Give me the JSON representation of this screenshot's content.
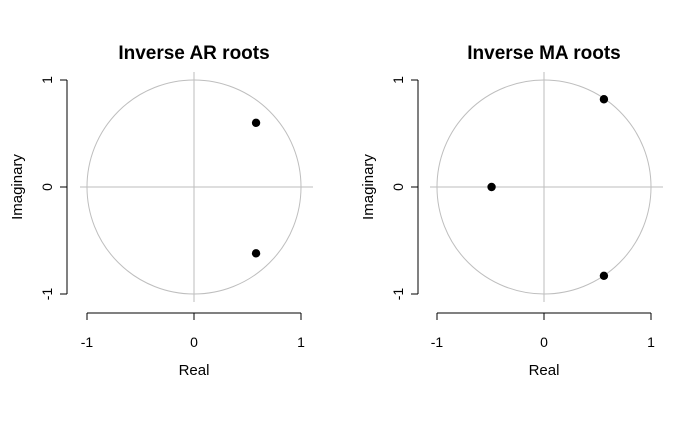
{
  "chart_data": [
    {
      "type": "scatter",
      "title": "Inverse AR roots",
      "xlabel": "Real",
      "ylabel": "Imaginary",
      "xlim": [
        -1,
        1
      ],
      "ylim": [
        -1,
        1
      ],
      "x_ticks": [
        "-1",
        "0",
        "1"
      ],
      "y_ticks": [
        "-1",
        "0",
        "1"
      ],
      "unit_circle": true,
      "grid": false,
      "points": [
        {
          "x": 0.58,
          "y": 0.6
        },
        {
          "x": 0.58,
          "y": -0.62
        }
      ]
    },
    {
      "type": "scatter",
      "title": "Inverse MA roots",
      "xlabel": "Real",
      "ylabel": "Imaginary",
      "xlim": [
        -1,
        1
      ],
      "ylim": [
        -1,
        1
      ],
      "x_ticks": [
        "-1",
        "0",
        "1"
      ],
      "y_ticks": [
        "-1",
        "0",
        "1"
      ],
      "unit_circle": true,
      "grid": false,
      "points": [
        {
          "x": 0.56,
          "y": 0.82
        },
        {
          "x": -0.49,
          "y": 0.0
        },
        {
          "x": 0.56,
          "y": -0.83
        }
      ]
    }
  ],
  "colors": {
    "points": "#000000",
    "reference_lines": "#bebebe",
    "axes": "#000000"
  }
}
